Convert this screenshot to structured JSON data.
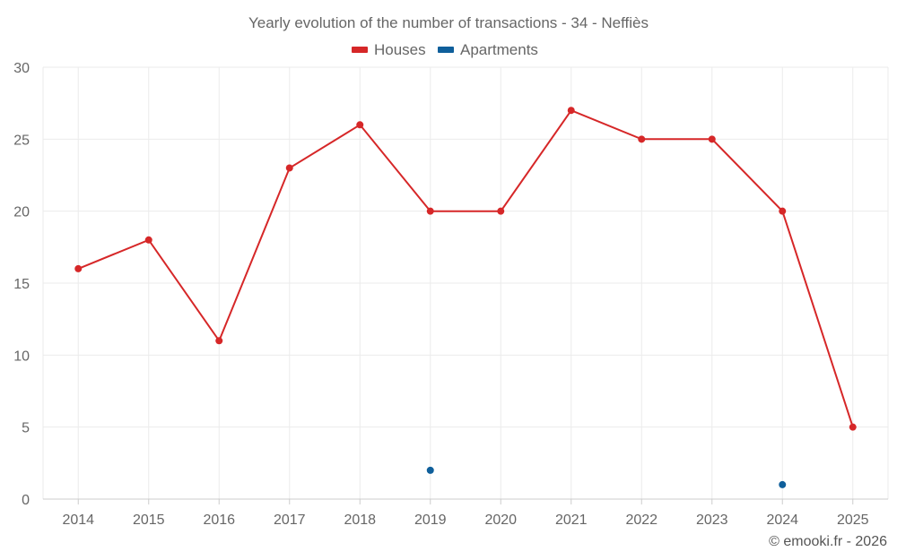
{
  "chart_data": {
    "type": "line",
    "title": "Yearly evolution of the number of transactions - 34 - Neffiès",
    "categories": [
      "2014",
      "2015",
      "2016",
      "2017",
      "2018",
      "2019",
      "2020",
      "2021",
      "2022",
      "2023",
      "2024",
      "2025"
    ],
    "series": [
      {
        "name": "Houses",
        "color": "#d62728",
        "values": [
          16,
          18,
          11,
          23,
          26,
          20,
          20,
          27,
          25,
          25,
          20,
          5
        ]
      },
      {
        "name": "Apartments",
        "color": "#0f5f9b",
        "values": [
          null,
          null,
          null,
          null,
          null,
          2,
          null,
          null,
          null,
          null,
          1,
          null
        ]
      }
    ],
    "ylim": [
      0,
      30
    ],
    "yticks": [
      "0",
      "5",
      "10",
      "15",
      "20",
      "25",
      "30"
    ],
    "xlabel": "",
    "ylabel": "",
    "legend_position": "top-center",
    "grid": true
  },
  "credit": "© emooki.fr - 2026"
}
